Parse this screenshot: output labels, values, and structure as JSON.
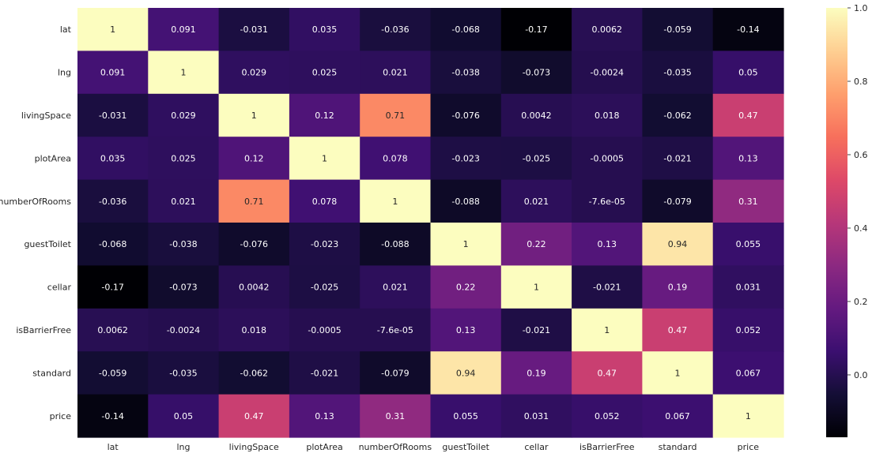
{
  "chart_data": {
    "type": "heatmap",
    "title": "",
    "xlabel": "",
    "ylabel": "",
    "columns": [
      "lat",
      "lng",
      "livingSpace",
      "plotArea",
      "numberOfRooms",
      "guestToilet",
      "cellar",
      "isBarrierFree",
      "standard",
      "price"
    ],
    "rows": [
      "lat",
      "lng",
      "livingSpace",
      "plotArea",
      "numberOfRooms",
      "guestToilet",
      "cellar",
      "isBarrierFree",
      "standard",
      "price"
    ],
    "labels": [
      [
        "1",
        "0.091",
        "-0.031",
        "0.035",
        "-0.036",
        "-0.068",
        "-0.17",
        "0.0062",
        "-0.059",
        "-0.14"
      ],
      [
        "0.091",
        "1",
        "0.029",
        "0.025",
        "0.021",
        "-0.038",
        "-0.073",
        "-0.0024",
        "-0.035",
        "0.05"
      ],
      [
        "-0.031",
        "0.029",
        "1",
        "0.12",
        "0.71",
        "-0.076",
        "0.0042",
        "0.018",
        "-0.062",
        "0.47"
      ],
      [
        "0.035",
        "0.025",
        "0.12",
        "1",
        "0.078",
        "-0.023",
        "-0.025",
        "-0.0005",
        "-0.021",
        "0.13"
      ],
      [
        "-0.036",
        "0.021",
        "0.71",
        "0.078",
        "1",
        "-0.088",
        "0.021",
        "-7.6e-05",
        "-0.079",
        "0.31"
      ],
      [
        "-0.068",
        "-0.038",
        "-0.076",
        "-0.023",
        "-0.088",
        "1",
        "0.22",
        "0.13",
        "0.94",
        "0.055"
      ],
      [
        "-0.17",
        "-0.073",
        "0.0042",
        "-0.025",
        "0.021",
        "0.22",
        "1",
        "-0.021",
        "0.19",
        "0.031"
      ],
      [
        "0.0062",
        "-0.0024",
        "0.018",
        "-0.0005",
        "-7.6e-05",
        "0.13",
        "-0.021",
        "1",
        "0.47",
        "0.052"
      ],
      [
        "-0.059",
        "-0.035",
        "-0.062",
        "-0.021",
        "-0.079",
        "0.94",
        "0.19",
        "0.47",
        "1",
        "0.067"
      ],
      [
        "-0.14",
        "0.05",
        "0.47",
        "0.13",
        "0.31",
        "0.055",
        "0.031",
        "0.052",
        "0.067",
        "1"
      ]
    ],
    "colormap": "magma",
    "vmin": -0.17,
    "vmax": 1.0,
    "colorbar": {
      "ticks": [
        0.0,
        0.2,
        0.4,
        0.6,
        0.8,
        1.0
      ],
      "tick_labels": [
        "0.0",
        "0.2",
        "0.4",
        "0.6",
        "0.8",
        "1.0"
      ]
    }
  }
}
